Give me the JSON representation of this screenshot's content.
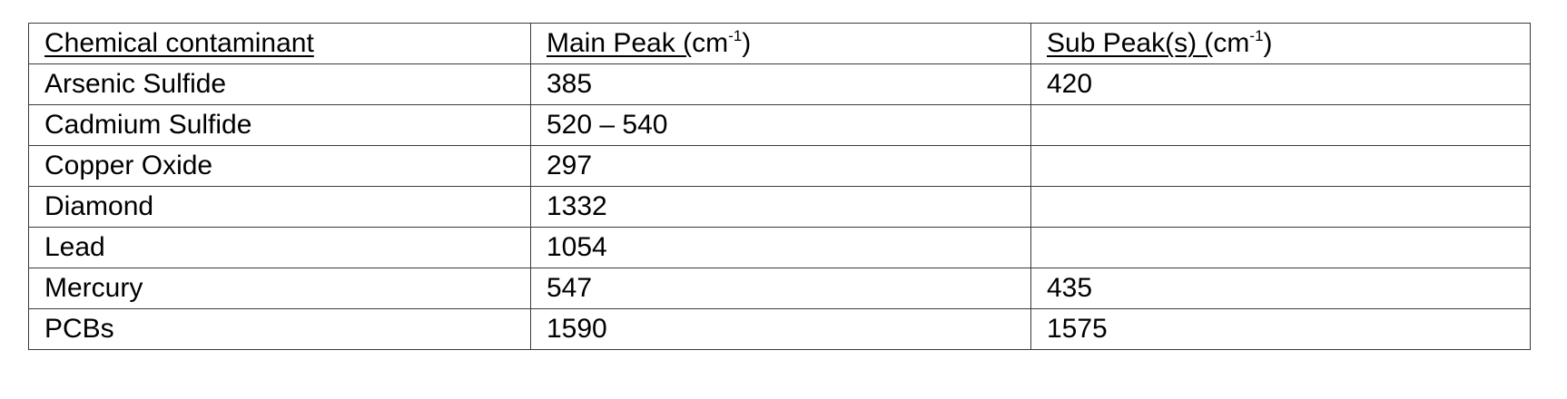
{
  "table": {
    "headers": {
      "contaminant": "Chemical contaminant",
      "main_peak_text": "Main Peak (",
      "main_peak_unit": "cm",
      "main_peak_exp": "-1",
      "main_peak_close": ")",
      "sub_peak_text": "Sub Peak(s) (",
      "sub_peak_unit": "cm",
      "sub_peak_exp": "-1",
      "sub_peak_close": ")"
    },
    "rows": [
      {
        "contaminant": "Arsenic Sulfide",
        "main_peak": "385",
        "sub_peak": "420"
      },
      {
        "contaminant": "Cadmium Sulfide",
        "main_peak": "520 – 540",
        "sub_peak": ""
      },
      {
        "contaminant": "Copper Oxide",
        "main_peak": "297",
        "sub_peak": ""
      },
      {
        "contaminant": "Diamond",
        "main_peak": "1332",
        "sub_peak": ""
      },
      {
        "contaminant": "Lead",
        "main_peak": "1054",
        "sub_peak": ""
      },
      {
        "contaminant": "Mercury",
        "main_peak": "547",
        "sub_peak": "435"
      },
      {
        "contaminant": "PCBs",
        "main_peak": "1590",
        "sub_peak": "1575"
      }
    ]
  }
}
